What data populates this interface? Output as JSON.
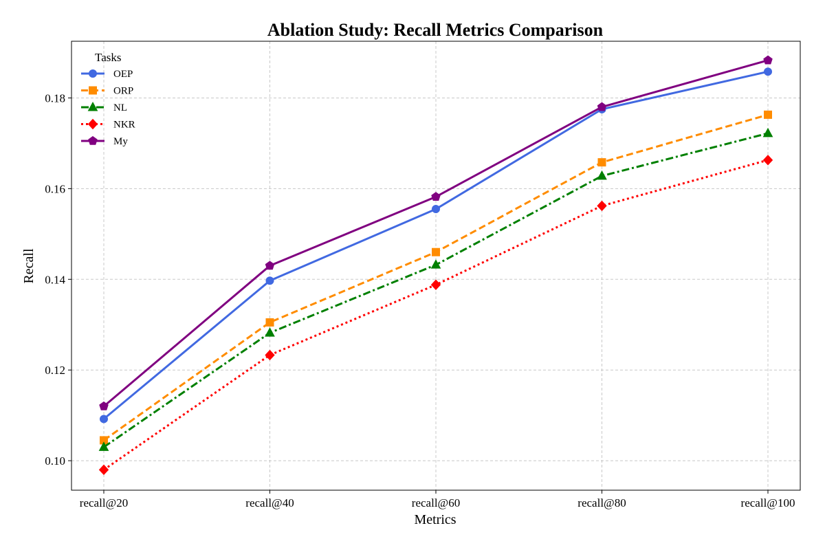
{
  "chart_data": {
    "type": "line",
    "title": "Ablation Study: Recall Metrics Comparison",
    "xlabel": "Metrics",
    "ylabel": "Recall",
    "categories": [
      "recall@20",
      "recall@40",
      "recall@60",
      "recall@80",
      "recall@100"
    ],
    "ylim": [
      0.0935,
      0.1925
    ],
    "yticks": [
      0.1,
      0.12,
      0.14,
      0.16,
      0.18
    ],
    "ytick_labels": [
      "0.10",
      "0.12",
      "0.14",
      "0.16",
      "0.18"
    ],
    "grid": true,
    "legend": {
      "title": "Tasks",
      "position": "top-left"
    },
    "series": [
      {
        "name": "OEP",
        "values": [
          0.1092,
          0.1397,
          0.1555,
          0.1775,
          0.1858
        ],
        "color": "#4169E1",
        "marker": "circle",
        "line_style": "solid"
      },
      {
        "name": "ORP",
        "values": [
          0.1045,
          0.1305,
          0.146,
          0.1658,
          0.1763
        ],
        "color": "#FF8C00",
        "marker": "square",
        "line_style": "dashed"
      },
      {
        "name": "NL",
        "values": [
          0.103,
          0.1282,
          0.1432,
          0.1628,
          0.1722
        ],
        "color": "#008000",
        "marker": "triangle",
        "line_style": "dashdot"
      },
      {
        "name": "NKR",
        "values": [
          0.098,
          0.1233,
          0.1388,
          0.1562,
          0.1663
        ],
        "color": "#FF0000",
        "marker": "diamond",
        "line_style": "dotted"
      },
      {
        "name": "My",
        "values": [
          0.112,
          0.143,
          0.1582,
          0.178,
          0.1883
        ],
        "color": "#800080",
        "marker": "pentagon",
        "line_style": "solid"
      }
    ]
  }
}
